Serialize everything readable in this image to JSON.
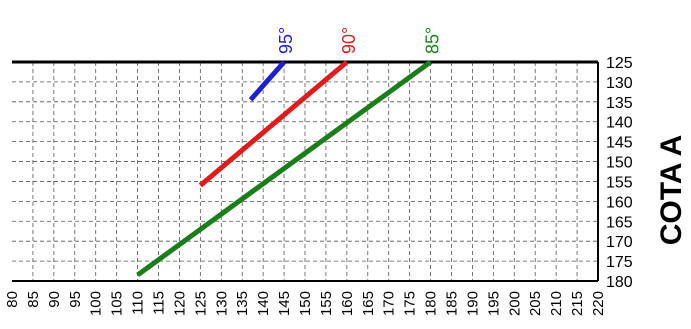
{
  "chart_data": {
    "type": "line",
    "x_ticks": [
      "80",
      "85",
      "90",
      "95",
      "100",
      "105",
      "110",
      "115",
      "120",
      "125",
      "130",
      "135",
      "140",
      "145",
      "150",
      "155",
      "160",
      "165",
      "170",
      "175",
      "180",
      "185",
      "190",
      "195",
      "200",
      "205",
      "210",
      "215",
      "220"
    ],
    "y_ticks": [
      "125",
      "130",
      "135",
      "140",
      "145",
      "150",
      "155",
      "160",
      "165",
      "170",
      "175",
      "180"
    ],
    "xlim": [
      80,
      220
    ],
    "ylim": [
      125,
      180
    ],
    "y_inverted": true,
    "ylabel": "COTA A",
    "grid": true,
    "series": [
      {
        "name": "95°",
        "color": "#1f1fd6",
        "points": [
          [
            137,
            134.5
          ],
          [
            145,
            125
          ]
        ]
      },
      {
        "name": "90°",
        "color": "#e01b1b",
        "points": [
          [
            125,
            156
          ],
          [
            160,
            125
          ]
        ]
      },
      {
        "name": "85°",
        "color": "#1a7f1a",
        "points": [
          [
            110,
            178.5
          ],
          [
            180,
            125
          ]
        ]
      }
    ]
  }
}
